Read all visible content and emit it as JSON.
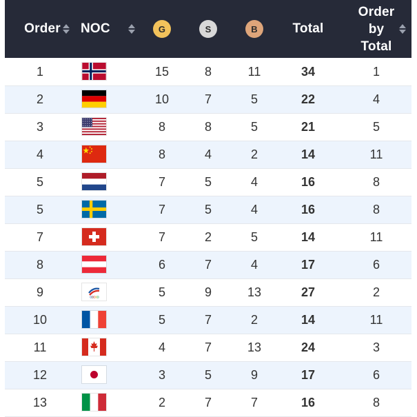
{
  "table": {
    "headers": {
      "order": "Order",
      "noc": "NOC",
      "gold": "G",
      "silver": "S",
      "bronze": "B",
      "total": "Total",
      "order_by_total_1": "Order",
      "order_by_total_2": "by",
      "order_by_total_3": "Total"
    },
    "rows": [
      {
        "order": "1",
        "flag": "norway-flag",
        "gold": "15",
        "silver": "8",
        "bronze": "11",
        "total": "34",
        "order_by_total": "1"
      },
      {
        "order": "2",
        "flag": "germany-flag",
        "gold": "10",
        "silver": "7",
        "bronze": "5",
        "total": "22",
        "order_by_total": "4"
      },
      {
        "order": "3",
        "flag": "united-states-flag",
        "gold": "8",
        "silver": "8",
        "bronze": "5",
        "total": "21",
        "order_by_total": "5"
      },
      {
        "order": "4",
        "flag": "china-flag",
        "gold": "8",
        "silver": "4",
        "bronze": "2",
        "total": "14",
        "order_by_total": "11"
      },
      {
        "order": "5",
        "flag": "netherlands-flag",
        "gold": "7",
        "silver": "5",
        "bronze": "4",
        "total": "16",
        "order_by_total": "8"
      },
      {
        "order": "5",
        "flag": "sweden-flag",
        "gold": "7",
        "silver": "5",
        "bronze": "4",
        "total": "16",
        "order_by_total": "8"
      },
      {
        "order": "7",
        "flag": "switzerland-flag",
        "gold": "7",
        "silver": "2",
        "bronze": "5",
        "total": "14",
        "order_by_total": "11"
      },
      {
        "order": "8",
        "flag": "austria-flag",
        "gold": "6",
        "silver": "7",
        "bronze": "4",
        "total": "17",
        "order_by_total": "6"
      },
      {
        "order": "9",
        "flag": "roc-flag",
        "gold": "5",
        "silver": "9",
        "bronze": "13",
        "total": "27",
        "order_by_total": "2"
      },
      {
        "order": "10",
        "flag": "france-flag",
        "gold": "5",
        "silver": "7",
        "bronze": "2",
        "total": "14",
        "order_by_total": "11"
      },
      {
        "order": "11",
        "flag": "canada-flag",
        "gold": "4",
        "silver": "7",
        "bronze": "13",
        "total": "24",
        "order_by_total": "3"
      },
      {
        "order": "12",
        "flag": "japan-flag",
        "gold": "3",
        "silver": "5",
        "bronze": "9",
        "total": "17",
        "order_by_total": "6"
      },
      {
        "order": "13",
        "flag": "italy-flag",
        "gold": "2",
        "silver": "7",
        "bronze": "7",
        "total": "16",
        "order_by_total": "8"
      }
    ]
  },
  "colors": {
    "header_bg": "#262a38",
    "row_alt_bg": "#edf4fd",
    "gold": "#f2c25b",
    "silver": "#d8d8d8",
    "bronze": "#dea57a"
  }
}
